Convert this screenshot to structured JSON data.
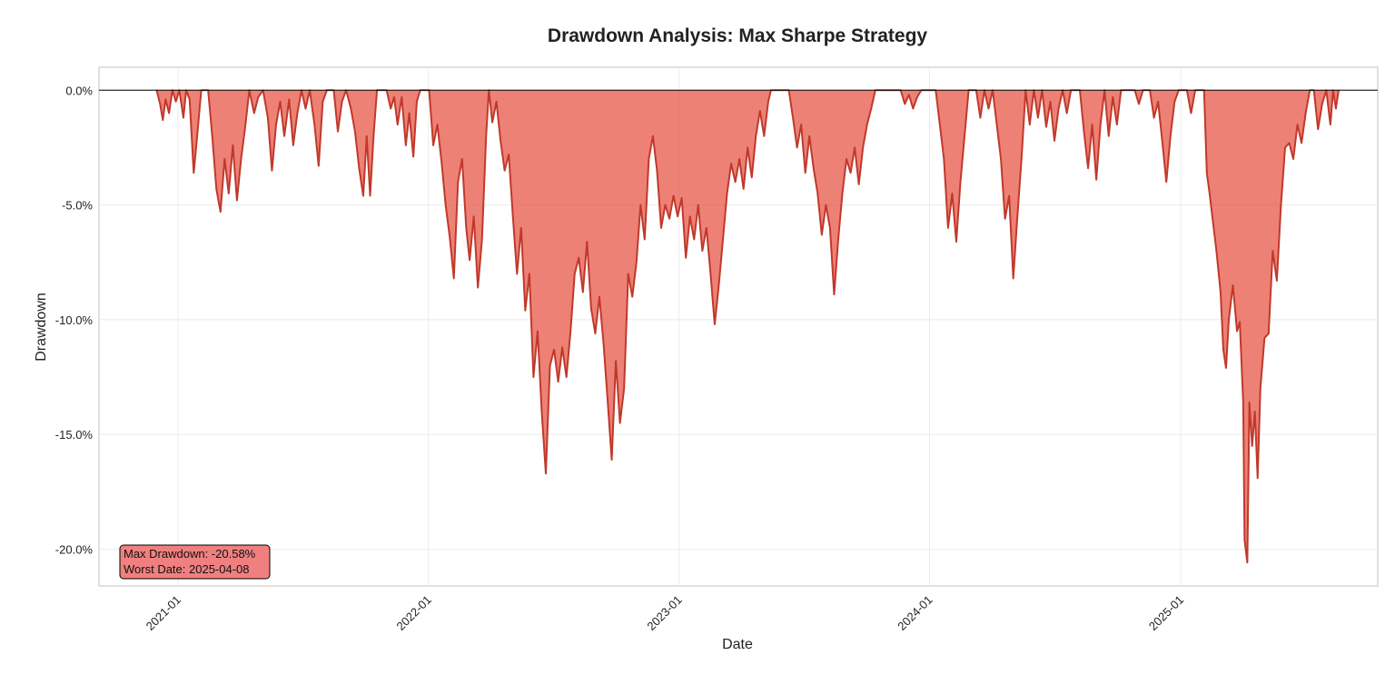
{
  "chart_data": {
    "type": "area",
    "title": "Drawdown Analysis: Max Sharpe Strategy",
    "xlabel": "Date",
    "ylabel": "Drawdown",
    "x_range": [
      "2020-09-08",
      "2025-10-15"
    ],
    "ylim": [
      -21.6,
      1.0
    ],
    "y_unit": "%",
    "x_ticks": [
      "2021-01",
      "2022-01",
      "2023-01",
      "2024-01",
      "2025-01"
    ],
    "y_ticks": [
      "0.0%",
      "-5.0%",
      "-10.0%",
      "-15.0%",
      "-20.0%"
    ],
    "y_tick_values": [
      0,
      -5,
      -10,
      -15,
      -20
    ],
    "grid": true,
    "baseline": 0,
    "colors": {
      "line": "#c0392b",
      "fill": "#e74c3c",
      "fill_opacity": 0.7,
      "baseline": "#000000",
      "annotation_bg": "#f08080"
    },
    "series": [
      {
        "values": [
          [
            "2020-12-01",
            0.0
          ],
          [
            "2020-12-06",
            -0.6
          ],
          [
            "2020-12-10",
            -1.3
          ],
          [
            "2020-12-14",
            -0.4
          ],
          [
            "2020-12-19",
            -1.0
          ],
          [
            "2020-12-24",
            0.0
          ],
          [
            "2020-12-29",
            -0.5
          ],
          [
            "2021-01-03",
            0.0
          ],
          [
            "2021-01-09",
            -1.2
          ],
          [
            "2021-01-13",
            0.0
          ],
          [
            "2021-01-18",
            -0.4
          ],
          [
            "2021-01-24",
            -3.6
          ],
          [
            "2021-01-29",
            -2.0
          ],
          [
            "2021-02-04",
            0.0
          ],
          [
            "2021-02-14",
            0.0
          ],
          [
            "2021-02-20",
            -2.0
          ],
          [
            "2021-02-26",
            -4.3
          ],
          [
            "2021-03-04",
            -5.3
          ],
          [
            "2021-03-10",
            -3.0
          ],
          [
            "2021-03-16",
            -4.5
          ],
          [
            "2021-03-22",
            -2.4
          ],
          [
            "2021-03-28",
            -4.8
          ],
          [
            "2021-04-03",
            -3.0
          ],
          [
            "2021-04-09",
            -1.6
          ],
          [
            "2021-04-15",
            0.0
          ],
          [
            "2021-04-22",
            -1.0
          ],
          [
            "2021-04-28",
            -0.3
          ],
          [
            "2021-05-05",
            0.0
          ],
          [
            "2021-05-12",
            -1.2
          ],
          [
            "2021-05-18",
            -3.5
          ],
          [
            "2021-05-24",
            -1.5
          ],
          [
            "2021-05-30",
            -0.5
          ],
          [
            "2021-06-05",
            -2.0
          ],
          [
            "2021-06-12",
            -0.4
          ],
          [
            "2021-06-18",
            -2.4
          ],
          [
            "2021-06-24",
            -1.0
          ],
          [
            "2021-06-30",
            0.0
          ],
          [
            "2021-07-06",
            -0.8
          ],
          [
            "2021-07-12",
            0.0
          ],
          [
            "2021-07-19",
            -1.5
          ],
          [
            "2021-07-25",
            -3.3
          ],
          [
            "2021-07-31",
            -0.5
          ],
          [
            "2021-08-06",
            0.0
          ],
          [
            "2021-08-16",
            0.0
          ],
          [
            "2021-08-22",
            -1.8
          ],
          [
            "2021-08-28",
            -0.5
          ],
          [
            "2021-09-03",
            0.0
          ],
          [
            "2021-09-10",
            -0.8
          ],
          [
            "2021-09-16",
            -1.8
          ],
          [
            "2021-09-22",
            -3.4
          ],
          [
            "2021-09-28",
            -4.6
          ],
          [
            "2021-10-03",
            -2.0
          ],
          [
            "2021-10-08",
            -4.6
          ],
          [
            "2021-10-13",
            -2.0
          ],
          [
            "2021-10-18",
            0.0
          ],
          [
            "2021-11-01",
            0.0
          ],
          [
            "2021-11-07",
            -0.8
          ],
          [
            "2021-11-12",
            -0.3
          ],
          [
            "2021-11-17",
            -1.5
          ],
          [
            "2021-11-23",
            -0.3
          ],
          [
            "2021-11-29",
            -2.4
          ],
          [
            "2021-12-04",
            -1.0
          ],
          [
            "2021-12-10",
            -2.9
          ],
          [
            "2021-12-15",
            -0.5
          ],
          [
            "2021-12-20",
            0.0
          ],
          [
            "2022-01-02",
            0.0
          ],
          [
            "2022-01-08",
            -2.4
          ],
          [
            "2022-01-14",
            -1.5
          ],
          [
            "2022-01-20",
            -3.1
          ],
          [
            "2022-01-26",
            -5.0
          ],
          [
            "2022-02-01",
            -6.4
          ],
          [
            "2022-02-07",
            -8.2
          ],
          [
            "2022-02-13",
            -4.0
          ],
          [
            "2022-02-19",
            -3.0
          ],
          [
            "2022-02-25",
            -6.0
          ],
          [
            "2022-03-02",
            -7.4
          ],
          [
            "2022-03-08",
            -5.5
          ],
          [
            "2022-03-14",
            -8.6
          ],
          [
            "2022-03-20",
            -6.5
          ],
          [
            "2022-03-26",
            -2.0
          ],
          [
            "2022-03-30",
            0.0
          ],
          [
            "2022-04-04",
            -1.4
          ],
          [
            "2022-04-10",
            -0.5
          ],
          [
            "2022-04-16",
            -2.2
          ],
          [
            "2022-04-22",
            -3.5
          ],
          [
            "2022-04-28",
            -2.8
          ],
          [
            "2022-05-04",
            -5.5
          ],
          [
            "2022-05-10",
            -8.0
          ],
          [
            "2022-05-16",
            -6.0
          ],
          [
            "2022-05-22",
            -9.6
          ],
          [
            "2022-05-28",
            -8.0
          ],
          [
            "2022-06-03",
            -12.5
          ],
          [
            "2022-06-09",
            -10.5
          ],
          [
            "2022-06-15",
            -14.0
          ],
          [
            "2022-06-21",
            -16.7
          ],
          [
            "2022-06-27",
            -12.0
          ],
          [
            "2022-07-03",
            -11.3
          ],
          [
            "2022-07-09",
            -12.7
          ],
          [
            "2022-07-15",
            -11.2
          ],
          [
            "2022-07-21",
            -12.5
          ],
          [
            "2022-07-27",
            -10.5
          ],
          [
            "2022-08-02",
            -8.0
          ],
          [
            "2022-08-08",
            -7.3
          ],
          [
            "2022-08-14",
            -8.8
          ],
          [
            "2022-08-20",
            -6.6
          ],
          [
            "2022-08-26",
            -9.5
          ],
          [
            "2022-09-01",
            -10.6
          ],
          [
            "2022-09-07",
            -9.0
          ],
          [
            "2022-09-13",
            -11.0
          ],
          [
            "2022-09-19",
            -13.5
          ],
          [
            "2022-09-25",
            -16.1
          ],
          [
            "2022-10-01",
            -11.8
          ],
          [
            "2022-10-07",
            -14.5
          ],
          [
            "2022-10-13",
            -13.0
          ],
          [
            "2022-10-19",
            -8.0
          ],
          [
            "2022-10-25",
            -9.0
          ],
          [
            "2022-10-31",
            -7.5
          ],
          [
            "2022-11-06",
            -5.0
          ],
          [
            "2022-11-12",
            -6.5
          ],
          [
            "2022-11-18",
            -3.0
          ],
          [
            "2022-11-24",
            -2.0
          ],
          [
            "2022-11-30",
            -3.5
          ],
          [
            "2022-12-06",
            -6.0
          ],
          [
            "2022-12-12",
            -5.0
          ],
          [
            "2022-12-18",
            -5.6
          ],
          [
            "2022-12-24",
            -4.6
          ],
          [
            "2022-12-30",
            -5.5
          ],
          [
            "2023-01-05",
            -4.7
          ],
          [
            "2023-01-11",
            -7.3
          ],
          [
            "2023-01-17",
            -5.5
          ],
          [
            "2023-01-23",
            -6.5
          ],
          [
            "2023-01-29",
            -5.0
          ],
          [
            "2023-02-04",
            -7.0
          ],
          [
            "2023-02-10",
            -6.0
          ],
          [
            "2023-02-16",
            -8.0
          ],
          [
            "2023-02-22",
            -10.2
          ],
          [
            "2023-02-28",
            -8.5
          ],
          [
            "2023-03-06",
            -6.5
          ],
          [
            "2023-03-12",
            -4.5
          ],
          [
            "2023-03-18",
            -3.2
          ],
          [
            "2023-03-24",
            -4.0
          ],
          [
            "2023-03-30",
            -3.0
          ],
          [
            "2023-04-05",
            -4.3
          ],
          [
            "2023-04-11",
            -2.5
          ],
          [
            "2023-04-17",
            -3.8
          ],
          [
            "2023-04-23",
            -2.0
          ],
          [
            "2023-04-29",
            -0.9
          ],
          [
            "2023-05-05",
            -2.0
          ],
          [
            "2023-05-11",
            -0.5
          ],
          [
            "2023-05-15",
            0.0
          ],
          [
            "2023-06-10",
            0.0
          ],
          [
            "2023-06-16",
            -1.2
          ],
          [
            "2023-06-22",
            -2.5
          ],
          [
            "2023-06-28",
            -1.5
          ],
          [
            "2023-07-04",
            -3.6
          ],
          [
            "2023-07-10",
            -2.0
          ],
          [
            "2023-07-16",
            -3.4
          ],
          [
            "2023-07-22",
            -4.5
          ],
          [
            "2023-07-28",
            -6.3
          ],
          [
            "2023-08-03",
            -5.0
          ],
          [
            "2023-08-09",
            -6.0
          ],
          [
            "2023-08-15",
            -8.9
          ],
          [
            "2023-08-21",
            -6.5
          ],
          [
            "2023-08-27",
            -4.5
          ],
          [
            "2023-09-02",
            -3.0
          ],
          [
            "2023-09-08",
            -3.6
          ],
          [
            "2023-09-14",
            -2.5
          ],
          [
            "2023-09-20",
            -4.1
          ],
          [
            "2023-09-26",
            -2.5
          ],
          [
            "2023-10-02",
            -1.5
          ],
          [
            "2023-10-08",
            -0.8
          ],
          [
            "2023-10-14",
            0.0
          ],
          [
            "2023-11-20",
            0.0
          ],
          [
            "2023-11-26",
            -0.6
          ],
          [
            "2023-12-02",
            -0.2
          ],
          [
            "2023-12-08",
            -0.8
          ],
          [
            "2023-12-14",
            -0.3
          ],
          [
            "2023-12-20",
            0.0
          ],
          [
            "2024-01-10",
            0.0
          ],
          [
            "2024-01-16",
            -1.5
          ],
          [
            "2024-01-22",
            -3.0
          ],
          [
            "2024-01-28",
            -6.0
          ],
          [
            "2024-02-03",
            -4.5
          ],
          [
            "2024-02-09",
            -6.6
          ],
          [
            "2024-02-15",
            -4.0
          ],
          [
            "2024-02-21",
            -2.0
          ],
          [
            "2024-02-27",
            0.0
          ],
          [
            "2024-03-09",
            0.0
          ],
          [
            "2024-03-15",
            -1.2
          ],
          [
            "2024-03-21",
            0.0
          ],
          [
            "2024-03-27",
            -0.8
          ],
          [
            "2024-04-02",
            0.0
          ],
          [
            "2024-04-08",
            -1.5
          ],
          [
            "2024-04-14",
            -3.0
          ],
          [
            "2024-04-20",
            -5.6
          ],
          [
            "2024-04-26",
            -4.6
          ],
          [
            "2024-05-02",
            -8.2
          ],
          [
            "2024-05-08",
            -5.5
          ],
          [
            "2024-05-14",
            -3.0
          ],
          [
            "2024-05-20",
            0.0
          ],
          [
            "2024-05-26",
            -1.5
          ],
          [
            "2024-06-01",
            0.0
          ],
          [
            "2024-06-07",
            -1.2
          ],
          [
            "2024-06-13",
            0.0
          ],
          [
            "2024-06-19",
            -1.6
          ],
          [
            "2024-06-25",
            -0.5
          ],
          [
            "2024-07-01",
            -2.2
          ],
          [
            "2024-07-07",
            -0.8
          ],
          [
            "2024-07-13",
            0.0
          ],
          [
            "2024-07-19",
            -1.0
          ],
          [
            "2024-07-25",
            0.0
          ],
          [
            "2024-08-07",
            0.0
          ],
          [
            "2024-08-13",
            -1.8
          ],
          [
            "2024-08-19",
            -3.4
          ],
          [
            "2024-08-25",
            -1.5
          ],
          [
            "2024-08-31",
            -3.9
          ],
          [
            "2024-09-06",
            -1.5
          ],
          [
            "2024-09-12",
            0.0
          ],
          [
            "2024-09-18",
            -2.0
          ],
          [
            "2024-09-24",
            -0.3
          ],
          [
            "2024-09-30",
            -1.5
          ],
          [
            "2024-10-06",
            0.0
          ],
          [
            "2024-10-26",
            0.0
          ],
          [
            "2024-11-01",
            -0.6
          ],
          [
            "2024-11-07",
            0.0
          ],
          [
            "2024-11-17",
            0.0
          ],
          [
            "2024-11-23",
            -1.2
          ],
          [
            "2024-11-29",
            -0.5
          ],
          [
            "2024-12-05",
            -2.2
          ],
          [
            "2024-12-11",
            -4.0
          ],
          [
            "2024-12-17",
            -2.0
          ],
          [
            "2024-12-23",
            -0.5
          ],
          [
            "2024-12-29",
            0.0
          ],
          [
            "2025-01-10",
            0.0
          ],
          [
            "2025-01-16",
            -1.0
          ],
          [
            "2025-01-22",
            0.0
          ],
          [
            "2025-02-04",
            0.0
          ],
          [
            "2025-02-08",
            -3.6
          ],
          [
            "2025-02-12",
            -4.5
          ],
          [
            "2025-02-18",
            -6.0
          ],
          [
            "2025-02-22",
            -7.0
          ],
          [
            "2025-02-28",
            -8.8
          ],
          [
            "2025-03-04",
            -11.3
          ],
          [
            "2025-03-08",
            -12.1
          ],
          [
            "2025-03-12",
            -10.0
          ],
          [
            "2025-03-18",
            -8.5
          ],
          [
            "2025-03-24",
            -10.5
          ],
          [
            "2025-03-28",
            -10.1
          ],
          [
            "2025-04-02",
            -13.6
          ],
          [
            "2025-04-04",
            -19.6
          ],
          [
            "2025-04-08",
            -20.58
          ],
          [
            "2025-04-11",
            -13.6
          ],
          [
            "2025-04-15",
            -15.5
          ],
          [
            "2025-04-19",
            -14.0
          ],
          [
            "2025-04-23",
            -16.9
          ],
          [
            "2025-04-27",
            -13.0
          ],
          [
            "2025-05-03",
            -10.8
          ],
          [
            "2025-05-09",
            -10.6
          ],
          [
            "2025-05-15",
            -7.0
          ],
          [
            "2025-05-21",
            -8.3
          ],
          [
            "2025-05-27",
            -5.0
          ],
          [
            "2025-06-02",
            -2.5
          ],
          [
            "2025-06-08",
            -2.3
          ],
          [
            "2025-06-14",
            -3.0
          ],
          [
            "2025-06-20",
            -1.5
          ],
          [
            "2025-06-26",
            -2.3
          ],
          [
            "2025-07-02",
            -1.0
          ],
          [
            "2025-07-08",
            0.0
          ],
          [
            "2025-07-14",
            0.0
          ],
          [
            "2025-07-20",
            -1.7
          ],
          [
            "2025-07-26",
            -0.6
          ],
          [
            "2025-08-01",
            0.0
          ],
          [
            "2025-08-07",
            -1.5
          ],
          [
            "2025-08-11",
            0.0
          ],
          [
            "2025-08-15",
            -0.8
          ],
          [
            "2025-08-19",
            0.0
          ]
        ]
      }
    ],
    "annotation": {
      "line1": "Max Drawdown: -20.58%",
      "line2": "Worst Date: 2025-04-08"
    }
  }
}
